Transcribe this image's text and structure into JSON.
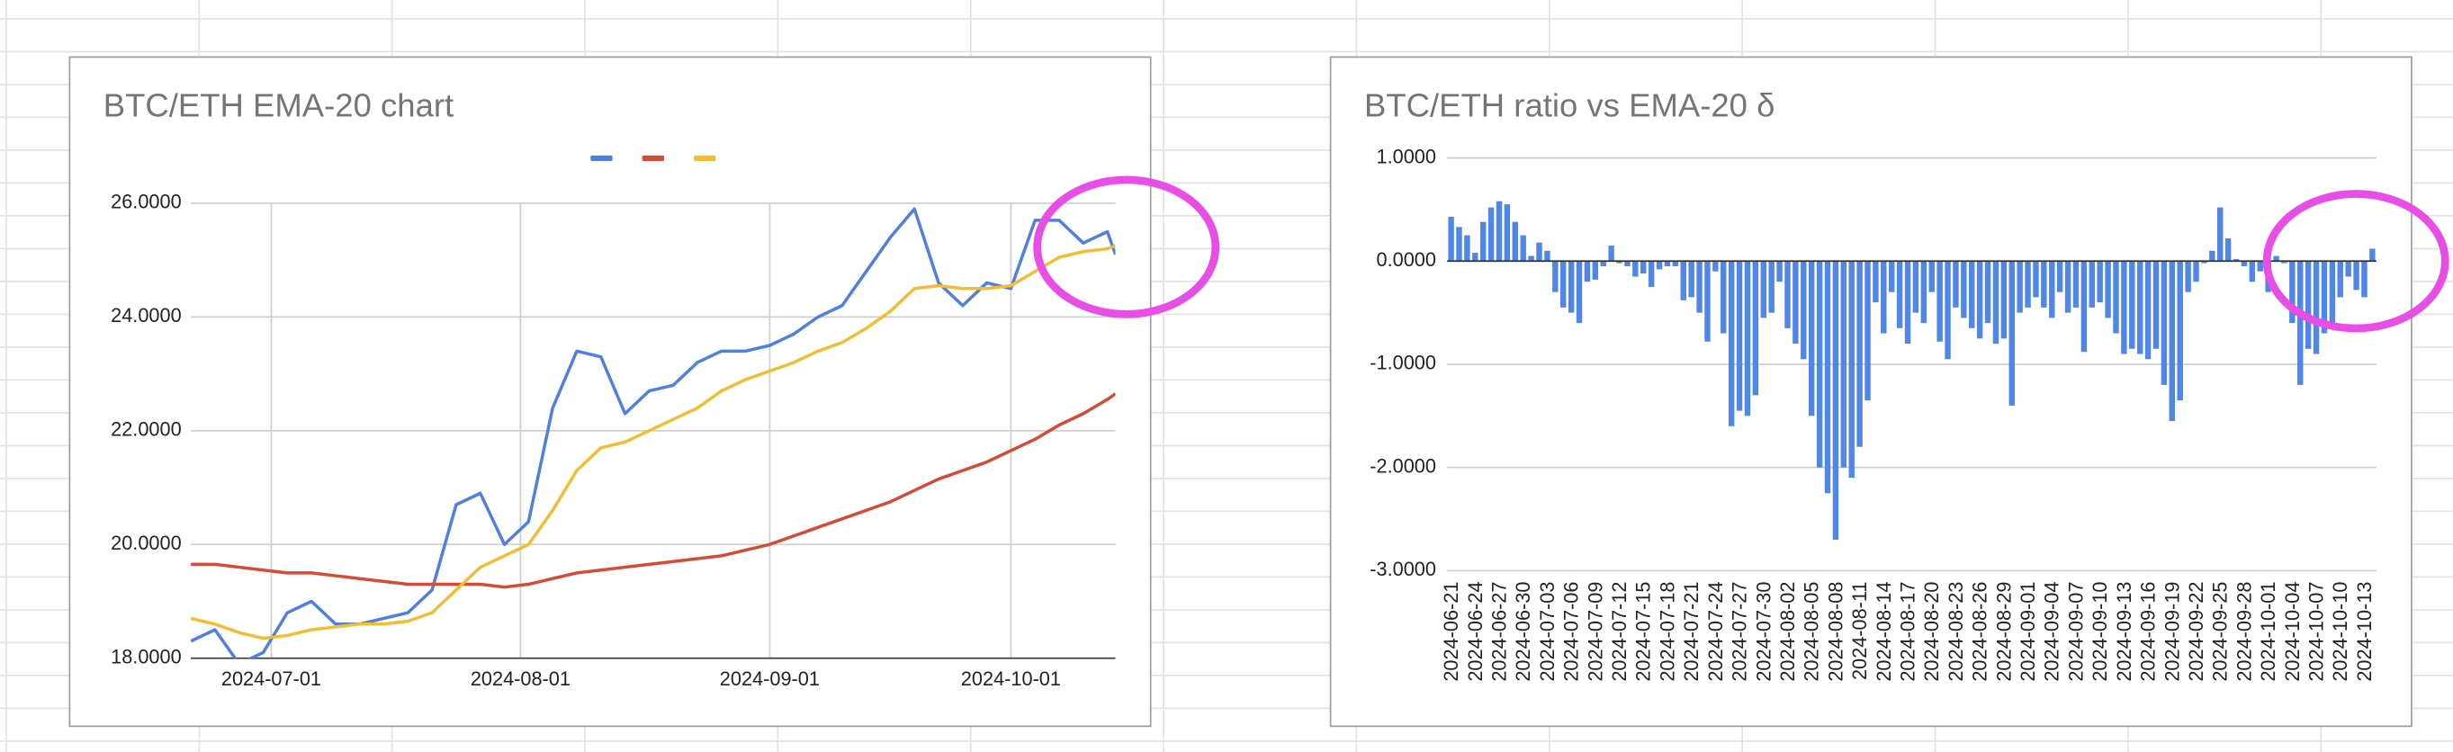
{
  "charts": [
    {
      "type": "line",
      "title": "BTC/ETH EMA-20 chart",
      "legend": "top",
      "x": [
        "2024-06-21",
        "2024-06-24",
        "2024-06-27",
        "2024-06-30",
        "2024-07-03",
        "2024-07-06",
        "2024-07-09",
        "2024-07-12",
        "2024-07-15",
        "2024-07-18",
        "2024-07-21",
        "2024-07-24",
        "2024-07-27",
        "2024-07-30",
        "2024-08-02",
        "2024-08-05",
        "2024-08-08",
        "2024-08-11",
        "2024-08-14",
        "2024-08-17",
        "2024-08-20",
        "2024-08-23",
        "2024-08-26",
        "2024-08-29",
        "2024-09-01",
        "2024-09-04",
        "2024-09-07",
        "2024-09-10",
        "2024-09-13",
        "2024-09-16",
        "2024-09-19",
        "2024-09-22",
        "2024-09-25",
        "2024-09-28",
        "2024-10-01",
        "2024-10-04",
        "2024-10-07",
        "2024-10-10",
        "2024-10-13",
        "2024-10-14"
      ],
      "xlim": [
        "2024-06-21",
        "2024-10-14"
      ],
      "xticks": [
        "2024-07-01",
        "2024-08-01",
        "2024-09-01",
        "2024-10-01"
      ],
      "ylim": [
        18,
        26
      ],
      "yticks": [
        {
          "value": 18,
          "label": "18.0000"
        },
        {
          "value": 20,
          "label": "20.0000"
        },
        {
          "value": 22,
          "label": "22.0000"
        },
        {
          "value": 24,
          "label": "24.0000"
        },
        {
          "value": 26,
          "label": "26.0000"
        }
      ],
      "grid": true,
      "series": [
        {
          "color": "#4f7fe0",
          "values": [
            18.3,
            18.5,
            17.9,
            18.1,
            18.8,
            19.0,
            18.6,
            18.6,
            18.7,
            18.8,
            19.2,
            20.7,
            20.9,
            20.0,
            20.4,
            22.4,
            23.4,
            23.3,
            22.3,
            22.7,
            22.8,
            23.2,
            23.4,
            23.4,
            23.5,
            23.7,
            24.0,
            24.2,
            24.8,
            25.4,
            25.9,
            24.6,
            24.2,
            24.6,
            24.5,
            25.7,
            25.7,
            25.3,
            25.5,
            25.1
          ]
        },
        {
          "color": "#d44b37",
          "values": [
            19.65,
            19.65,
            19.6,
            19.55,
            19.5,
            19.5,
            19.45,
            19.4,
            19.35,
            19.3,
            19.3,
            19.3,
            19.3,
            19.25,
            19.3,
            19.4,
            19.5,
            19.55,
            19.6,
            19.65,
            19.7,
            19.75,
            19.8,
            19.9,
            20.0,
            20.15,
            20.3,
            20.45,
            20.6,
            20.75,
            20.95,
            21.15,
            21.3,
            21.45,
            21.65,
            21.85,
            22.1,
            22.3,
            22.55,
            22.65
          ]
        },
        {
          "color": "#f2bd33",
          "values": [
            18.7,
            18.6,
            18.45,
            18.35,
            18.4,
            18.5,
            18.55,
            18.6,
            18.6,
            18.65,
            18.8,
            19.2,
            19.6,
            19.8,
            20.0,
            20.6,
            21.3,
            21.7,
            21.8,
            22.0,
            22.2,
            22.4,
            22.7,
            22.9,
            23.05,
            23.2,
            23.4,
            23.55,
            23.8,
            24.1,
            24.5,
            24.55,
            24.5,
            24.5,
            24.55,
            24.8,
            25.05,
            25.15,
            25.2,
            25.25
          ]
        }
      ]
    },
    {
      "type": "bar",
      "title": "BTC/ETH ratio vs EMA-20 δ",
      "color": "#4f86e8",
      "categories": [
        "2024-06-21",
        null,
        null,
        "2024-06-24",
        null,
        null,
        "2024-06-27",
        null,
        null,
        "2024-06-30",
        null,
        null,
        "2024-07-03",
        null,
        null,
        "2024-07-06",
        null,
        null,
        "2024-07-09",
        null,
        null,
        "2024-07-12",
        null,
        null,
        "2024-07-15",
        null,
        null,
        "2024-07-18",
        null,
        null,
        "2024-07-21",
        null,
        null,
        "2024-07-24",
        null,
        null,
        "2024-07-27",
        null,
        null,
        "2024-07-30",
        null,
        null,
        "2024-08-02",
        null,
        null,
        "2024-08-05",
        null,
        null,
        "2024-08-08",
        null,
        null,
        "2024-08-11",
        null,
        null,
        "2024-08-14",
        null,
        null,
        "2024-08-17",
        null,
        null,
        "2024-08-20",
        null,
        null,
        "2024-08-23",
        null,
        null,
        "2024-08-26",
        null,
        null,
        "2024-08-29",
        null,
        null,
        "2024-09-01",
        null,
        null,
        "2024-09-04",
        null,
        null,
        "2024-09-07",
        null,
        null,
        "2024-09-10",
        null,
        null,
        "2024-09-13",
        null,
        null,
        "2024-09-16",
        null,
        null,
        "2024-09-19",
        null,
        null,
        "2024-09-22",
        null,
        null,
        "2024-09-25",
        null,
        null,
        "2024-09-28",
        null,
        null,
        "2024-10-01",
        null,
        null,
        "2024-10-04",
        null,
        null,
        "2024-10-07",
        null,
        null,
        "2024-10-10",
        null,
        null,
        "2024-10-13",
        null
      ],
      "values": [
        0.43,
        0.33,
        0.25,
        0.08,
        0.38,
        0.52,
        0.58,
        0.55,
        0.38,
        0.25,
        0.05,
        0.18,
        0.1,
        -0.3,
        -0.45,
        -0.5,
        -0.6,
        -0.2,
        -0.18,
        -0.05,
        0.15,
        -0.02,
        -0.05,
        -0.15,
        -0.12,
        -0.25,
        -0.08,
        -0.05,
        -0.05,
        -0.38,
        -0.35,
        -0.5,
        -0.78,
        -0.1,
        -0.7,
        -1.6,
        -1.45,
        -1.5,
        -1.3,
        -0.55,
        -0.5,
        -0.2,
        -0.65,
        -0.8,
        -0.95,
        -1.5,
        -2.0,
        -2.25,
        -2.7,
        -2.0,
        -2.1,
        -1.8,
        -1.35,
        -0.4,
        -0.7,
        -0.3,
        -0.65,
        -0.8,
        -0.5,
        -0.6,
        -0.3,
        -0.78,
        -0.95,
        -0.45,
        -0.55,
        -0.65,
        -0.75,
        -0.6,
        -0.8,
        -0.75,
        -1.4,
        -0.5,
        -0.45,
        -0.35,
        -0.45,
        -0.55,
        -0.3,
        -0.5,
        -0.45,
        -0.88,
        -0.45,
        -0.4,
        -0.55,
        -0.7,
        -0.9,
        -0.85,
        -0.9,
        -0.95,
        -0.85,
        -1.2,
        -1.55,
        -1.35,
        -0.3,
        -0.2,
        -0.02,
        0.1,
        0.52,
        0.22,
        0.02,
        -0.05,
        -0.2,
        -0.1,
        -0.3,
        0.05,
        -0.02,
        -0.6,
        -1.2,
        -0.85,
        -0.9,
        -0.7,
        -0.6,
        -0.35,
        -0.15,
        -0.28,
        -0.35,
        0.12
      ],
      "ylim": [
        -3,
        1
      ],
      "yticks": [
        {
          "value": -3,
          "label": "-3.0000"
        },
        {
          "value": -2,
          "label": "-2.0000"
        },
        {
          "value": -1,
          "label": "-1.0000"
        },
        {
          "value": 0,
          "label": "0.0000"
        },
        {
          "value": 1,
          "label": "1.0000"
        }
      ],
      "grid": true
    }
  ]
}
